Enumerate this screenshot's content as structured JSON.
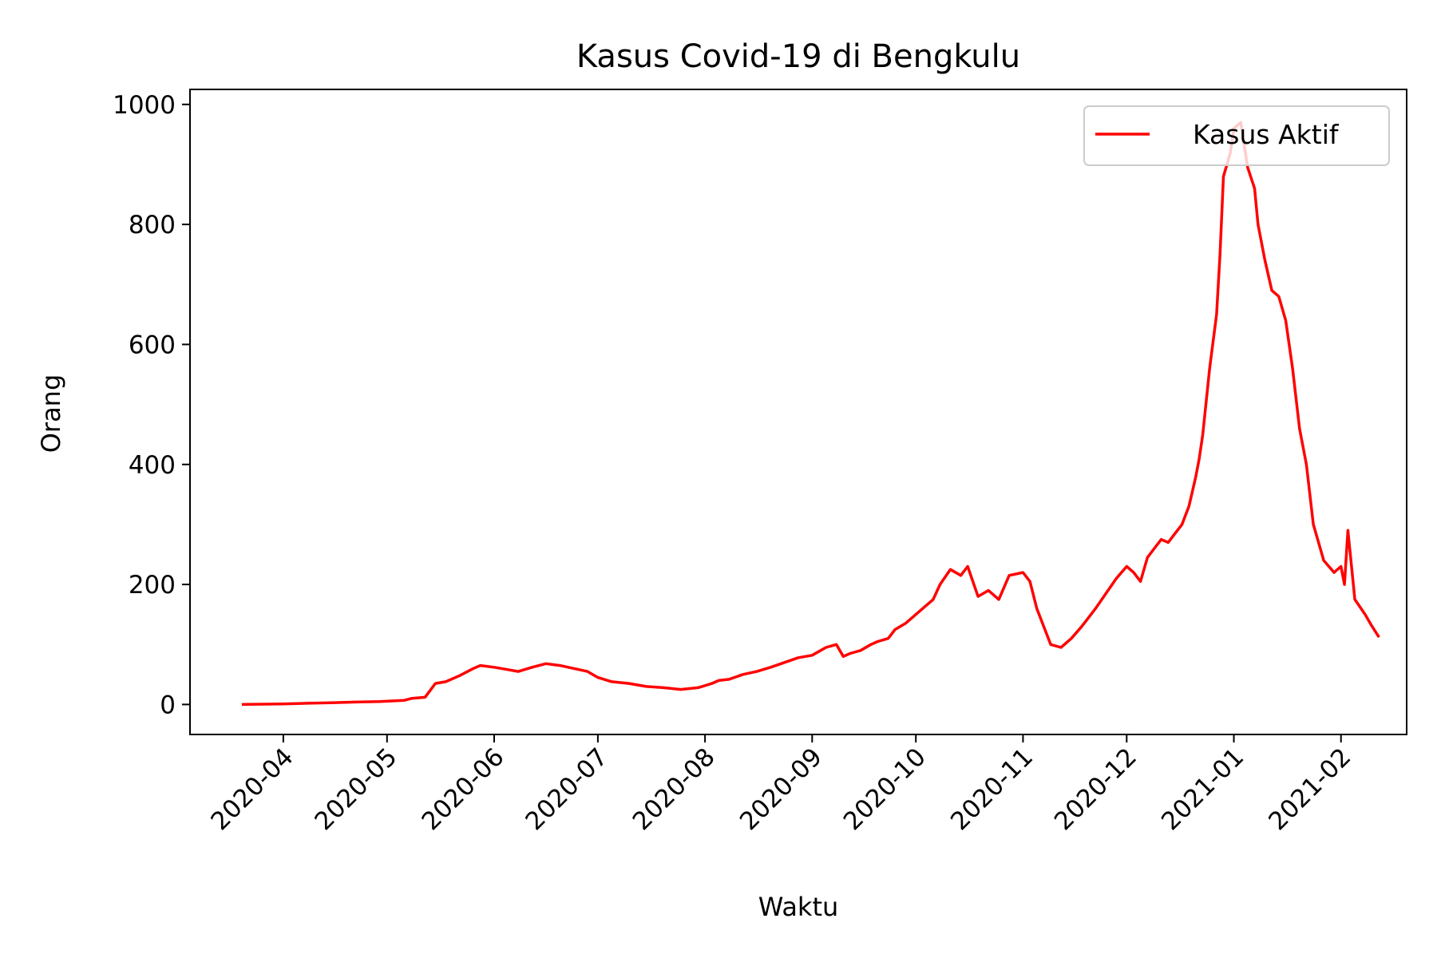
{
  "chart_data": {
    "type": "line",
    "title": "Kasus Covid-19 di Bengkulu",
    "xlabel": "Waktu",
    "ylabel": "Orang",
    "ylim": [
      -50,
      1025
    ],
    "xlim": [
      "2020-03-05",
      "2021-02-20"
    ],
    "x_ticks": [
      "2020-04",
      "2020-05",
      "2020-06",
      "2020-07",
      "2020-08",
      "2020-09",
      "2020-10",
      "2020-11",
      "2020-12",
      "2021-01",
      "2021-02"
    ],
    "y_ticks": [
      0,
      200,
      400,
      600,
      800,
      1000
    ],
    "grid": false,
    "legend_position": "top-right",
    "series": [
      {
        "name": "Kasus Aktif",
        "color": "#ff0000",
        "x": [
          "2020-03-20",
          "2020-04-01",
          "2020-04-08",
          "2020-04-15",
          "2020-04-22",
          "2020-04-29",
          "2020-05-06",
          "2020-05-08",
          "2020-05-12",
          "2020-05-15",
          "2020-05-18",
          "2020-05-22",
          "2020-05-26",
          "2020-05-28",
          "2020-06-01",
          "2020-06-05",
          "2020-06-08",
          "2020-06-12",
          "2020-06-16",
          "2020-06-20",
          "2020-06-24",
          "2020-06-28",
          "2020-07-01",
          "2020-07-05",
          "2020-07-10",
          "2020-07-15",
          "2020-07-20",
          "2020-07-25",
          "2020-07-30",
          "2020-08-03",
          "2020-08-05",
          "2020-08-08",
          "2020-08-12",
          "2020-08-16",
          "2020-08-20",
          "2020-08-24",
          "2020-08-28",
          "2020-09-01",
          "2020-09-05",
          "2020-09-08",
          "2020-09-10",
          "2020-09-12",
          "2020-09-15",
          "2020-09-18",
          "2020-09-20",
          "2020-09-23",
          "2020-09-25",
          "2020-09-28",
          "2020-10-01",
          "2020-10-04",
          "2020-10-06",
          "2020-10-08",
          "2020-10-11",
          "2020-10-14",
          "2020-10-16",
          "2020-10-19",
          "2020-10-22",
          "2020-10-25",
          "2020-10-28",
          "2020-11-01",
          "2020-11-03",
          "2020-11-05",
          "2020-11-07",
          "2020-11-09",
          "2020-11-12",
          "2020-11-15",
          "2020-11-18",
          "2020-11-20",
          "2020-11-22",
          "2020-11-25",
          "2020-11-28",
          "2020-12-01",
          "2020-12-03",
          "2020-12-05",
          "2020-12-07",
          "2020-12-09",
          "2020-12-11",
          "2020-12-13",
          "2020-12-15",
          "2020-12-17",
          "2020-12-19",
          "2020-12-20",
          "2020-12-21",
          "2020-12-22",
          "2020-12-23",
          "2020-12-25",
          "2020-12-27",
          "2020-12-28",
          "2020-12-29",
          "2020-12-30",
          "2020-12-31",
          "2021-01-01",
          "2021-01-03",
          "2021-01-05",
          "2021-01-07",
          "2021-01-08",
          "2021-01-10",
          "2021-01-12",
          "2021-01-14",
          "2021-01-16",
          "2021-01-18",
          "2021-01-20",
          "2021-01-22",
          "2021-01-24",
          "2021-01-27",
          "2021-01-30",
          "2021-02-01",
          "2021-02-02",
          "2021-02-03",
          "2021-02-05",
          "2021-02-08",
          "2021-02-10",
          "2021-02-12"
        ],
        "y": [
          0,
          1,
          2,
          3,
          4,
          5,
          7,
          10,
          12,
          35,
          38,
          48,
          60,
          65,
          62,
          58,
          55,
          62,
          68,
          65,
          60,
          55,
          45,
          38,
          35,
          30,
          28,
          25,
          28,
          35,
          40,
          42,
          50,
          55,
          62,
          70,
          78,
          82,
          95,
          100,
          80,
          85,
          90,
          100,
          105,
          110,
          125,
          135,
          150,
          165,
          175,
          200,
          225,
          215,
          230,
          180,
          190,
          175,
          215,
          220,
          205,
          160,
          130,
          100,
          95,
          110,
          130,
          145,
          160,
          185,
          210,
          230,
          220,
          205,
          245,
          260,
          275,
          270,
          285,
          300,
          330,
          355,
          380,
          410,
          450,
          560,
          650,
          750,
          880,
          900,
          920,
          960,
          970,
          895,
          860,
          800,
          740,
          690,
          680,
          640,
          560,
          460,
          400,
          300,
          240,
          220,
          230,
          200,
          290,
          175,
          150,
          130,
          112
        ]
      }
    ]
  }
}
